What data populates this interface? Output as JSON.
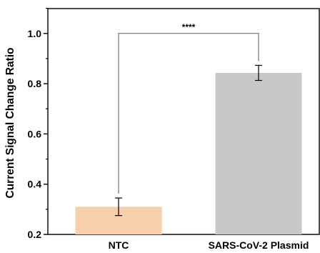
{
  "chart_data": {
    "type": "bar",
    "title": "",
    "xlabel": "",
    "ylabel": "Current Signal Change Ratio",
    "ylim": [
      0.2,
      1.1
    ],
    "yticks": [
      "0.2",
      "0.4",
      "0.6",
      "0.8",
      "1.0"
    ],
    "grid": false,
    "categories": [
      "NTC",
      "SARS-CoV-2 Plasmid"
    ],
    "values": [
      0.31,
      0.843
    ],
    "errors": [
      0.035,
      0.03
    ],
    "colors": [
      "#f8cfad",
      "#c8c8c8"
    ],
    "significance": {
      "label": "****",
      "bracket_y": 1.0,
      "between": [
        0,
        1
      ]
    }
  }
}
